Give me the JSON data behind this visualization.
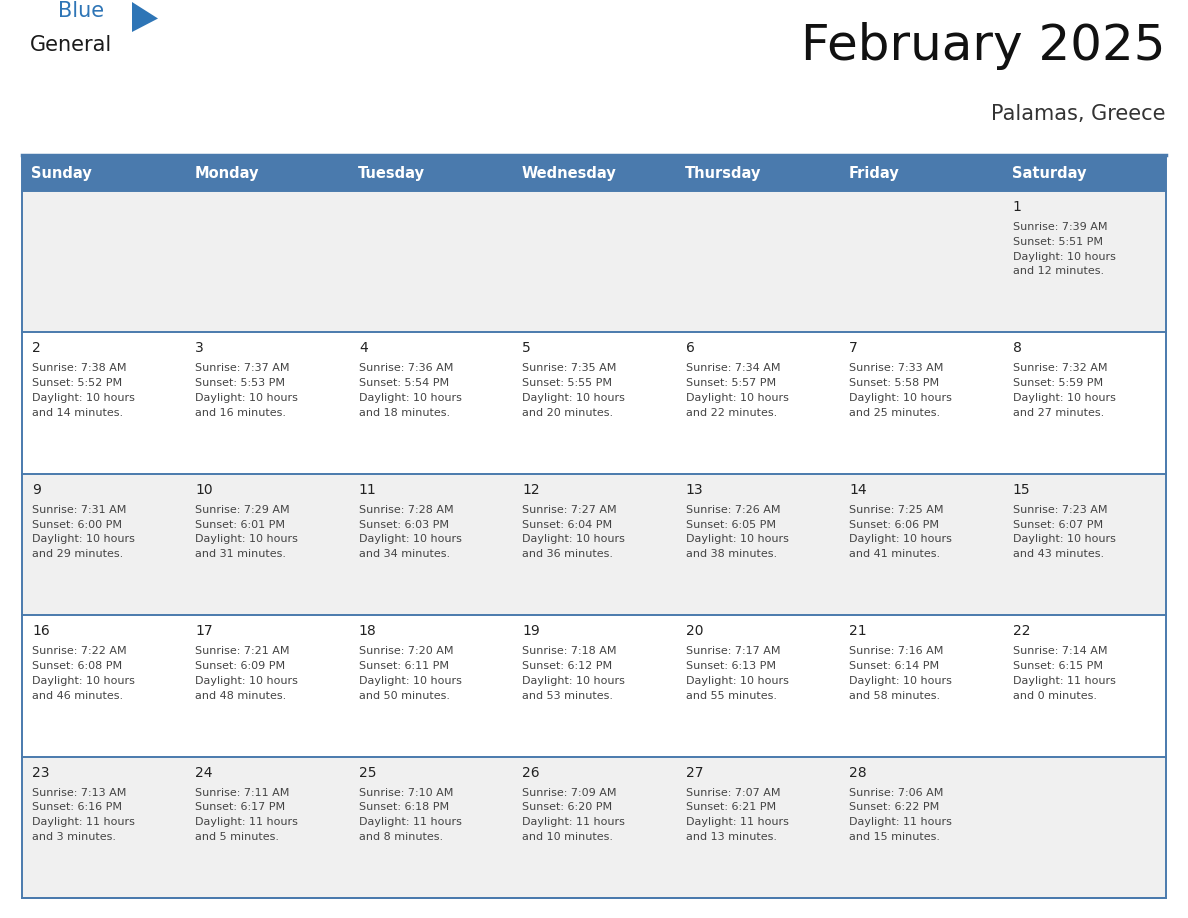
{
  "title": "February 2025",
  "subtitle": "Palamas, Greece",
  "header_color": "#4a7aad",
  "header_text_color": "#ffffff",
  "day_names": [
    "Sunday",
    "Monday",
    "Tuesday",
    "Wednesday",
    "Thursday",
    "Friday",
    "Saturday"
  ],
  "cell_bg_white": "#ffffff",
  "cell_bg_gray": "#f0f0f0",
  "border_color": "#4a7aad",
  "text_color": "#444444",
  "date_color": "#222222",
  "logo_general_color": "#1a1a1a",
  "logo_blue_color": "#2e75b6",
  "title_color": "#111111",
  "subtitle_color": "#333333",
  "days": [
    {
      "date": 1,
      "col": 6,
      "row": 0,
      "sunrise": "7:39 AM",
      "sunset": "5:51 PM",
      "daylight_h": "10 hours",
      "daylight_m": "and 12 minutes."
    },
    {
      "date": 2,
      "col": 0,
      "row": 1,
      "sunrise": "7:38 AM",
      "sunset": "5:52 PM",
      "daylight_h": "10 hours",
      "daylight_m": "and 14 minutes."
    },
    {
      "date": 3,
      "col": 1,
      "row": 1,
      "sunrise": "7:37 AM",
      "sunset": "5:53 PM",
      "daylight_h": "10 hours",
      "daylight_m": "and 16 minutes."
    },
    {
      "date": 4,
      "col": 2,
      "row": 1,
      "sunrise": "7:36 AM",
      "sunset": "5:54 PM",
      "daylight_h": "10 hours",
      "daylight_m": "and 18 minutes."
    },
    {
      "date": 5,
      "col": 3,
      "row": 1,
      "sunrise": "7:35 AM",
      "sunset": "5:55 PM",
      "daylight_h": "10 hours",
      "daylight_m": "and 20 minutes."
    },
    {
      "date": 6,
      "col": 4,
      "row": 1,
      "sunrise": "7:34 AM",
      "sunset": "5:57 PM",
      "daylight_h": "10 hours",
      "daylight_m": "and 22 minutes."
    },
    {
      "date": 7,
      "col": 5,
      "row": 1,
      "sunrise": "7:33 AM",
      "sunset": "5:58 PM",
      "daylight_h": "10 hours",
      "daylight_m": "and 25 minutes."
    },
    {
      "date": 8,
      "col": 6,
      "row": 1,
      "sunrise": "7:32 AM",
      "sunset": "5:59 PM",
      "daylight_h": "10 hours",
      "daylight_m": "and 27 minutes."
    },
    {
      "date": 9,
      "col": 0,
      "row": 2,
      "sunrise": "7:31 AM",
      "sunset": "6:00 PM",
      "daylight_h": "10 hours",
      "daylight_m": "and 29 minutes."
    },
    {
      "date": 10,
      "col": 1,
      "row": 2,
      "sunrise": "7:29 AM",
      "sunset": "6:01 PM",
      "daylight_h": "10 hours",
      "daylight_m": "and 31 minutes."
    },
    {
      "date": 11,
      "col": 2,
      "row": 2,
      "sunrise": "7:28 AM",
      "sunset": "6:03 PM",
      "daylight_h": "10 hours",
      "daylight_m": "and 34 minutes."
    },
    {
      "date": 12,
      "col": 3,
      "row": 2,
      "sunrise": "7:27 AM",
      "sunset": "6:04 PM",
      "daylight_h": "10 hours",
      "daylight_m": "and 36 minutes."
    },
    {
      "date": 13,
      "col": 4,
      "row": 2,
      "sunrise": "7:26 AM",
      "sunset": "6:05 PM",
      "daylight_h": "10 hours",
      "daylight_m": "and 38 minutes."
    },
    {
      "date": 14,
      "col": 5,
      "row": 2,
      "sunrise": "7:25 AM",
      "sunset": "6:06 PM",
      "daylight_h": "10 hours",
      "daylight_m": "and 41 minutes."
    },
    {
      "date": 15,
      "col": 6,
      "row": 2,
      "sunrise": "7:23 AM",
      "sunset": "6:07 PM",
      "daylight_h": "10 hours",
      "daylight_m": "and 43 minutes."
    },
    {
      "date": 16,
      "col": 0,
      "row": 3,
      "sunrise": "7:22 AM",
      "sunset": "6:08 PM",
      "daylight_h": "10 hours",
      "daylight_m": "and 46 minutes."
    },
    {
      "date": 17,
      "col": 1,
      "row": 3,
      "sunrise": "7:21 AM",
      "sunset": "6:09 PM",
      "daylight_h": "10 hours",
      "daylight_m": "and 48 minutes."
    },
    {
      "date": 18,
      "col": 2,
      "row": 3,
      "sunrise": "7:20 AM",
      "sunset": "6:11 PM",
      "daylight_h": "10 hours",
      "daylight_m": "and 50 minutes."
    },
    {
      "date": 19,
      "col": 3,
      "row": 3,
      "sunrise": "7:18 AM",
      "sunset": "6:12 PM",
      "daylight_h": "10 hours",
      "daylight_m": "and 53 minutes."
    },
    {
      "date": 20,
      "col": 4,
      "row": 3,
      "sunrise": "7:17 AM",
      "sunset": "6:13 PM",
      "daylight_h": "10 hours",
      "daylight_m": "and 55 minutes."
    },
    {
      "date": 21,
      "col": 5,
      "row": 3,
      "sunrise": "7:16 AM",
      "sunset": "6:14 PM",
      "daylight_h": "10 hours",
      "daylight_m": "and 58 minutes."
    },
    {
      "date": 22,
      "col": 6,
      "row": 3,
      "sunrise": "7:14 AM",
      "sunset": "6:15 PM",
      "daylight_h": "11 hours",
      "daylight_m": "and 0 minutes."
    },
    {
      "date": 23,
      "col": 0,
      "row": 4,
      "sunrise": "7:13 AM",
      "sunset": "6:16 PM",
      "daylight_h": "11 hours",
      "daylight_m": "and 3 minutes."
    },
    {
      "date": 24,
      "col": 1,
      "row": 4,
      "sunrise": "7:11 AM",
      "sunset": "6:17 PM",
      "daylight_h": "11 hours",
      "daylight_m": "and 5 minutes."
    },
    {
      "date": 25,
      "col": 2,
      "row": 4,
      "sunrise": "7:10 AM",
      "sunset": "6:18 PM",
      "daylight_h": "11 hours",
      "daylight_m": "and 8 minutes."
    },
    {
      "date": 26,
      "col": 3,
      "row": 4,
      "sunrise": "7:09 AM",
      "sunset": "6:20 PM",
      "daylight_h": "11 hours",
      "daylight_m": "and 10 minutes."
    },
    {
      "date": 27,
      "col": 4,
      "row": 4,
      "sunrise": "7:07 AM",
      "sunset": "6:21 PM",
      "daylight_h": "11 hours",
      "daylight_m": "and 13 minutes."
    },
    {
      "date": 28,
      "col": 5,
      "row": 4,
      "sunrise": "7:06 AM",
      "sunset": "6:22 PM",
      "daylight_h": "11 hours",
      "daylight_m": "and 15 minutes."
    }
  ]
}
